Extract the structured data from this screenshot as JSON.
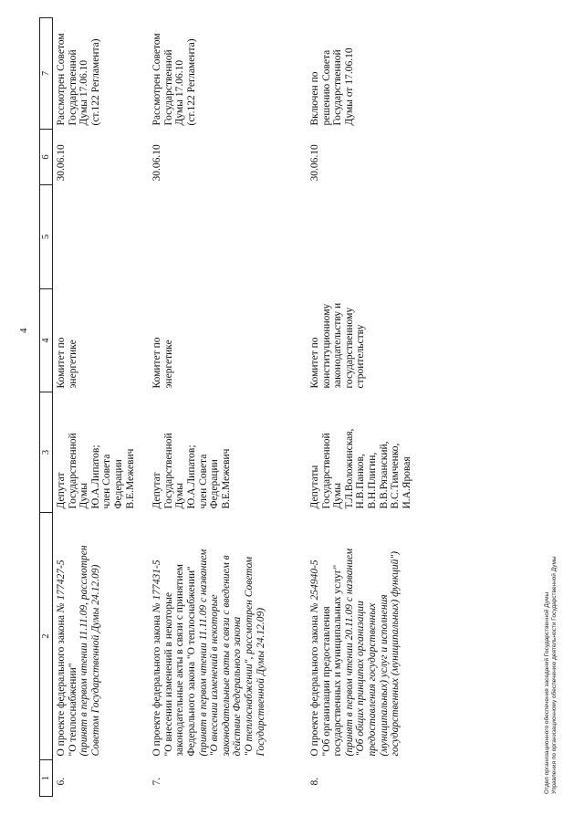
{
  "page_number": "4",
  "header": [
    "1",
    "2",
    "3",
    "4",
    "5",
    "6",
    "7"
  ],
  "rows": [
    {
      "num": "6.",
      "intro": "О проекте федерального закона ",
      "bill_no": "№ 177427-5",
      "lines": [
        {
          "text": "\"О теплоснабжении\"",
          "italic": false
        },
        {
          "text": "(принят в первом чтении 11.11.09, рассмотрен",
          "italic": true
        },
        {
          "text": "Советом Государственной Думы 24.12.09)",
          "italic": true
        }
      ],
      "initiators": [
        "Депутат",
        "Государственной",
        "Думы",
        "Ю.А.Липатов;",
        "член Совета",
        "Федерации",
        "В.Е.Межевич"
      ],
      "committee": [
        "Комитет по",
        "энергетике"
      ],
      "col5": [],
      "date": [
        "30.06.10"
      ],
      "note": [
        "Рассмотрен Советом",
        "Государственной",
        "Думы 17.06.10",
        "(ст.122 Регламента)"
      ]
    },
    {
      "num": "7.",
      "intro": "О проекте федерального закона ",
      "bill_no": "№ 177431-5",
      "lines": [
        {
          "text": "\"О внесении изменений в некоторые",
          "italic": false
        },
        {
          "text": "законодательные акты в связи с принятием",
          "italic": false
        },
        {
          "text": "Федерального закона \"О теплоснабжении\"",
          "italic": false
        },
        {
          "text": "(принят в первом чтении 11.11.09 с названием",
          "italic": true
        },
        {
          "text": "\"О внесении изменений в некоторые",
          "italic": true
        },
        {
          "text": "законодательные акты в связи с введением в",
          "italic": true
        },
        {
          "text": "действие Федерального закона",
          "italic": true
        },
        {
          "text": "\"О теплоснабжении\", рассмотрен Советом",
          "italic": true
        },
        {
          "text": "Государственной Думы 24.12.09)",
          "italic": true
        }
      ],
      "initiators": [
        "Депутат",
        "Государственной",
        "Думы",
        "Ю.А.Липатов;",
        "член Совета",
        "Федерации",
        "В.Е.Межевич"
      ],
      "committee": [
        "Комитет по",
        "энергетике"
      ],
      "col5": [],
      "date": [
        "30.06.10"
      ],
      "note": [
        "Рассмотрен Советом",
        "Государственной",
        "Думы 17.06.10",
        "(ст.122 Регламента)"
      ]
    },
    {
      "num": "8.",
      "intro": "О проекте федерального закона ",
      "bill_no": "№ 254940-5",
      "lines": [
        {
          "text": "\"Об организации предоставления",
          "italic": false
        },
        {
          "text": "государственных и муниципальных услуг\"",
          "italic": false
        },
        {
          "text": "(принят в первом чтении 20.11.09 с названием",
          "italic": true
        },
        {
          "text": "\"Об общих принципах организации",
          "italic": true
        },
        {
          "text": "предоставления государственных",
          "italic": true
        },
        {
          "text": "(муниципальных) услуг и исполнения",
          "italic": true
        },
        {
          "text": "государственных (муниципальных) функций\")",
          "italic": true
        }
      ],
      "initiators": [
        "Депутаты",
        "Государственной",
        "Думы",
        "Т.Л.Воложинская,",
        "Н.В.Панков,",
        "В.Н.Плигин,",
        "В.В.Рязанский,",
        "В.С.Тимченко,",
        "И.А.Яровая"
      ],
      "committee": [
        "Комитет  по",
        "конституционному",
        "законодательству и",
        "государственному",
        "строительству"
      ],
      "col5": [],
      "date": [
        "30.06.10"
      ],
      "note": [
        "Включен по",
        "решению Совета",
        "Государственной",
        "Думы от 17.06.10"
      ]
    }
  ],
  "footer": [
    "Отдел организационного обеспечения заседаний Государственной Думы",
    "Управления по организационному обеспечению деятельности Государственной Думы"
  ]
}
